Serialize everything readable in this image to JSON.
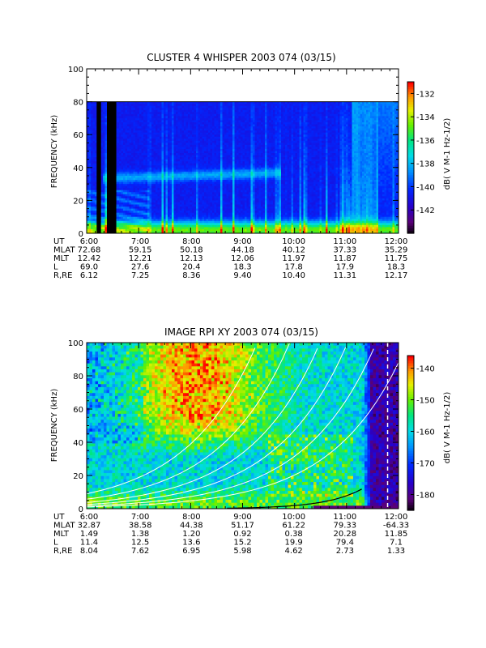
{
  "chart_data": [
    {
      "type": "heatmap",
      "title": "CLUSTER 4 WHISPER 2003 074 (03/15)",
      "ylabel": "FREQUENCY (kHz)",
      "ylim": [
        0,
        100
      ],
      "y_ticks": [
        "0",
        "20",
        "40",
        "60",
        "80",
        "100"
      ],
      "xlim_hours": [
        6,
        12
      ],
      "data_top_khz": 80,
      "colorbar": {
        "label": "dB( V M-1 Hz-1/2)",
        "range": [
          -144,
          -131
        ],
        "ticks": [
          "-132",
          "-134",
          "-136",
          "-138",
          "-140",
          "-142"
        ]
      },
      "ephemeris": {
        "labels": [
          "UT",
          "MLAT",
          "MLT",
          "L",
          "R,RE"
        ],
        "ut": [
          "6:00",
          "7:00",
          "8:00",
          "9:00",
          "10:00",
          "11:00",
          "12:00"
        ],
        "rows": [
          [
            "72.68",
            "59.15",
            "50.18",
            "44.18",
            "40.12",
            "37.33",
            "35.29"
          ],
          [
            "12.42",
            "12.21",
            "12.13",
            "12.06",
            "11.97",
            "11.87",
            "11.75"
          ],
          [
            "69.0",
            "27.6",
            "20.4",
            "18.3",
            "17.8",
            "17.9",
            "18.3"
          ],
          [
            "6.12",
            "7.25",
            "8.36",
            "9.40",
            "10.40",
            "11.31",
            "12.17"
          ]
        ]
      }
    },
    {
      "type": "heatmap",
      "title": "IMAGE RPI XY 2003 074 (03/15)",
      "ylabel": "FREQUENCY (kHz)",
      "ylim": [
        0,
        100
      ],
      "y_ticks": [
        "0",
        "20",
        "40",
        "60",
        "80",
        "100"
      ],
      "xlim_hours": [
        6,
        12
      ],
      "colorbar": {
        "label": "dB( V M-1 Hz-1/2)",
        "range": [
          -185,
          -136
        ],
        "ticks": [
          "-140",
          "-150",
          "-160",
          "-170",
          "-180"
        ]
      },
      "ephemeris": {
        "labels": [
          "UT",
          "MLAT",
          "MLT",
          "L",
          "R,RE"
        ],
        "ut": [
          "6:00",
          "7:00",
          "8:00",
          "9:00",
          "10:00",
          "11:00",
          "12:00"
        ],
        "rows": [
          [
            "32.87",
            "38.58",
            "44.38",
            "51.17",
            "61.22",
            "79.33",
            "-64.33"
          ],
          [
            "1.49",
            "1.38",
            "1.20",
            "0.92",
            "0.38",
            "20.28",
            "11.85"
          ],
          [
            "11.4",
            "12.5",
            "13.6",
            "15.2",
            "19.9",
            "79.4",
            "7.1"
          ],
          [
            "8.04",
            "7.62",
            "6.95",
            "5.98",
            "4.62",
            "2.73",
            "1.33"
          ]
        ]
      }
    }
  ]
}
